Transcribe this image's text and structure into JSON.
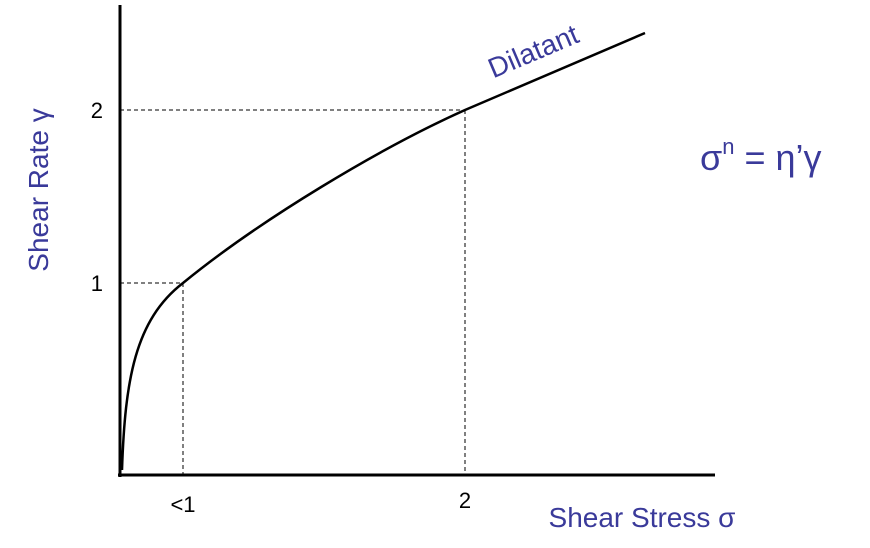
{
  "x_axis": {
    "label": "Shear Stress σ",
    "ticks": [
      "<1",
      "2"
    ]
  },
  "y_axis": {
    "label": "Shear Rate γ",
    "ticks": [
      "1",
      "2"
    ]
  },
  "curve_label": "Dilatant",
  "equation": {
    "base": "σ",
    "exponent": "n",
    "rest": " = η’γ"
  }
}
